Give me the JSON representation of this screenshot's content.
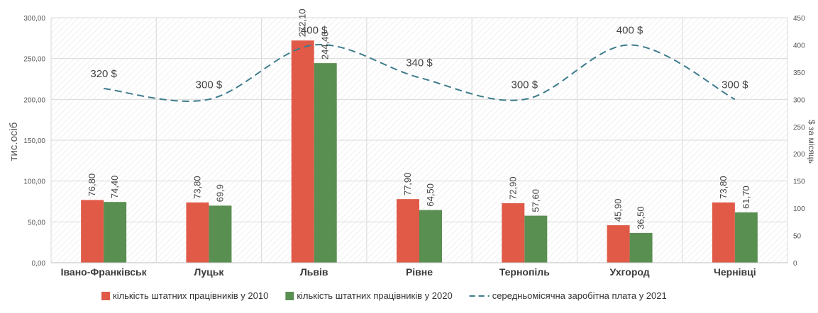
{
  "chart_data": {
    "type": "bar",
    "categories": [
      "Івано-Франківськ",
      "Луцьк",
      "Львів",
      "Рівне",
      "Тернопіль",
      "Ухгород",
      "Чернівці"
    ],
    "series": [
      {
        "name": "кількість штатних працівників у 2010",
        "type": "bar",
        "axis": "left",
        "color": "#e05a47",
        "values": [
          76.8,
          73.8,
          272.1,
          77.9,
          72.9,
          45.9,
          73.8
        ],
        "labels": [
          "76,80",
          "73,80",
          "272,10",
          "77,90",
          "72,90",
          "45,90",
          "73,80"
        ]
      },
      {
        "name": "кількість штатних працівників у 2020",
        "type": "bar",
        "axis": "left",
        "color": "#5a8f52",
        "values": [
          74.4,
          69.9,
          244.4,
          64.5,
          57.6,
          36.5,
          61.7
        ],
        "labels": [
          "74,40",
          "69,9",
          "244,40",
          "64,50",
          "57,60",
          "36,50",
          "61,70"
        ]
      },
      {
        "name": "середньомісячна заробітна плата у 2021",
        "type": "line",
        "style": "dashed",
        "axis": "right",
        "color": "#3e7c8c",
        "values": [
          320,
          300,
          400,
          340,
          300,
          400,
          300
        ],
        "labels": [
          "320 $",
          "300 $",
          "400 $",
          "340 $",
          "300 $",
          "400 $",
          "300 $"
        ]
      }
    ],
    "ylabel": "тис.осіб",
    "y2label": "$ за місяць",
    "ylim": [
      0,
      300
    ],
    "y2lim": [
      0,
      450
    ],
    "yticks": [
      "0,00",
      "50,00",
      "100,00",
      "150,00",
      "200,00",
      "250,00",
      "300,00"
    ],
    "y2ticks": [
      "0",
      "50",
      "100",
      "150",
      "200",
      "250",
      "300",
      "350",
      "400",
      "450"
    ],
    "grid": true,
    "legend_position": "bottom"
  }
}
